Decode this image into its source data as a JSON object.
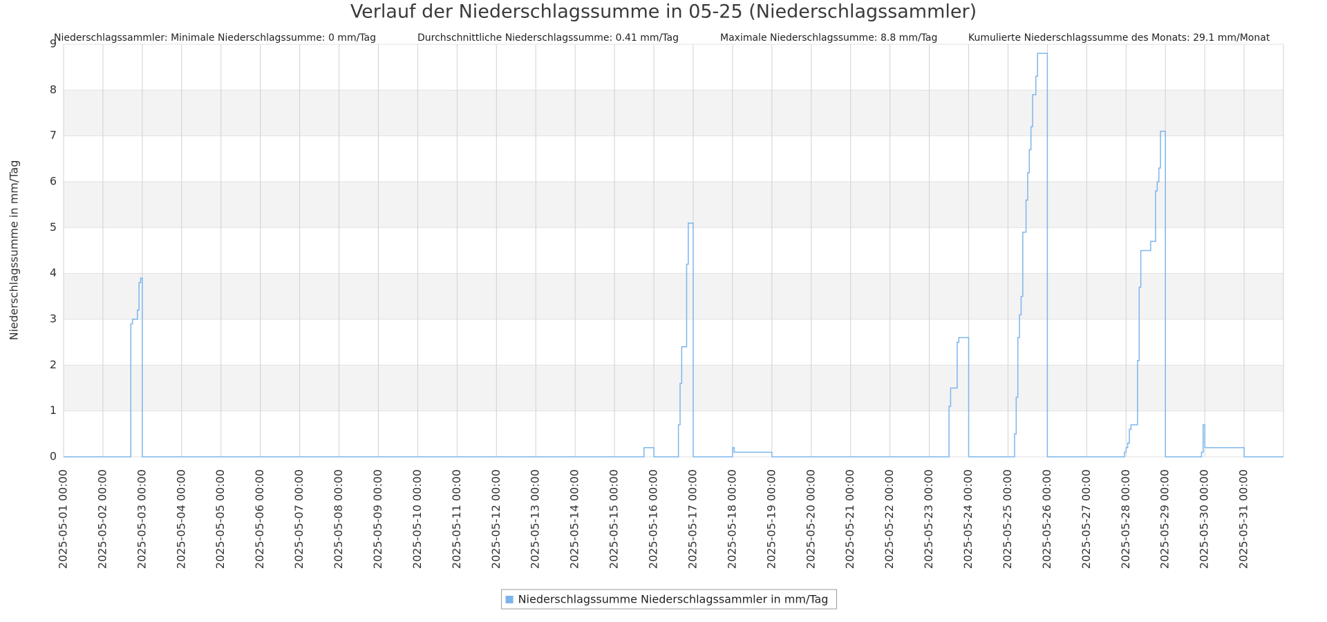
{
  "chart_data": {
    "type": "line",
    "title": "Verlauf der Niederschlagssumme in 05-25 (Niederschlagssammler)",
    "stats": [
      "Niederschlagssammler: Minimale Niederschlagssumme: 0 mm/Tag",
      "Durchschnittliche Niederschlagssumme: 0.41 mm/Tag",
      "Maximale Niederschlagssumme: 8.8 mm/Tag",
      "Kumulierte Niederschlagssumme des Monats: 29.1 mm/Monat"
    ],
    "y_label": "Niederschlagssumme in mm/Tag",
    "xlim": [
      "2025-05-01 00:00",
      "2025-06-01 00:00"
    ],
    "xticks": [
      "2025-05-01 00:00",
      "2025-05-02 00:00",
      "2025-05-03 00:00",
      "2025-05-04 00:00",
      "2025-05-05 00:00",
      "2025-05-06 00:00",
      "2025-05-07 00:00",
      "2025-05-08 00:00",
      "2025-05-09 00:00",
      "2025-05-10 00:00",
      "2025-05-11 00:00",
      "2025-05-12 00:00",
      "2025-05-13 00:00",
      "2025-05-14 00:00",
      "2025-05-15 00:00",
      "2025-05-16 00:00",
      "2025-05-17 00:00",
      "2025-05-18 00:00",
      "2025-05-19 00:00",
      "2025-05-20 00:00",
      "2025-05-21 00:00",
      "2025-05-22 00:00",
      "2025-05-23 00:00",
      "2025-05-24 00:00",
      "2025-05-25 00:00",
      "2025-05-26 00:00",
      "2025-05-27 00:00",
      "2025-05-28 00:00",
      "2025-05-29 00:00",
      "2025-05-30 00:00",
      "2025-05-31 00:00"
    ],
    "ylim": [
      0,
      9
    ],
    "yticks": [
      0,
      1,
      2,
      3,
      4,
      5,
      6,
      7,
      8,
      9
    ],
    "grid": true,
    "step": true,
    "x": [
      "2025-05-01 00:00",
      "2025-05-02 17:00",
      "2025-05-02 18:00",
      "2025-05-02 21:00",
      "2025-05-02 22:00",
      "2025-05-02 23:00",
      "2025-05-03 00:00",
      "2025-05-15 18:00",
      "2025-05-16 00:00",
      "2025-05-16 15:00",
      "2025-05-16 16:00",
      "2025-05-16 17:00",
      "2025-05-16 20:00",
      "2025-05-16 21:00",
      "2025-05-17 00:00",
      "2025-05-18 00:00",
      "2025-05-18 01:00",
      "2025-05-19 00:00",
      "2025-05-23 12:00",
      "2025-05-23 13:00",
      "2025-05-23 17:00",
      "2025-05-23 18:00",
      "2025-05-24 00:00",
      "2025-05-25 04:00",
      "2025-05-25 05:00",
      "2025-05-25 06:00",
      "2025-05-25 07:00",
      "2025-05-25 08:00",
      "2025-05-25 09:00",
      "2025-05-25 11:00",
      "2025-05-25 12:00",
      "2025-05-25 13:00",
      "2025-05-25 14:00",
      "2025-05-25 15:00",
      "2025-05-25 17:00",
      "2025-05-25 18:00",
      "2025-05-26 00:00",
      "2025-05-27 23:00",
      "2025-05-28 00:00",
      "2025-05-28 01:00",
      "2025-05-28 02:00",
      "2025-05-28 03:00",
      "2025-05-28 07:00",
      "2025-05-28 08:00",
      "2025-05-28 09:00",
      "2025-05-28 15:00",
      "2025-05-28 18:00",
      "2025-05-28 19:00",
      "2025-05-28 20:00",
      "2025-05-28 21:00",
      "2025-05-29 00:00",
      "2025-05-29 22:00",
      "2025-05-29 23:00",
      "2025-05-30 00:00",
      "2025-05-31 00:00",
      "2025-06-01 00:00"
    ],
    "series": [
      {
        "name": "Niederschlagssumme Niederschlagssammler in mm/Tag",
        "color": "#7cb5ec",
        "values": [
          0,
          2.9,
          3.0,
          3.2,
          3.8,
          3.9,
          0,
          0.2,
          0,
          0.7,
          1.6,
          2.4,
          4.2,
          5.1,
          0,
          0.2,
          0.1,
          0,
          1.1,
          1.5,
          2.5,
          2.6,
          0,
          0.5,
          1.3,
          2.6,
          3.1,
          3.5,
          4.9,
          5.6,
          6.2,
          6.7,
          7.2,
          7.9,
          8.3,
          8.8,
          0,
          0.1,
          0.2,
          0.3,
          0.6,
          0.7,
          2.1,
          3.7,
          4.5,
          4.7,
          5.8,
          6.0,
          6.3,
          7.1,
          0,
          0.1,
          0.7,
          0.2,
          0,
          0
        ]
      }
    ]
  }
}
